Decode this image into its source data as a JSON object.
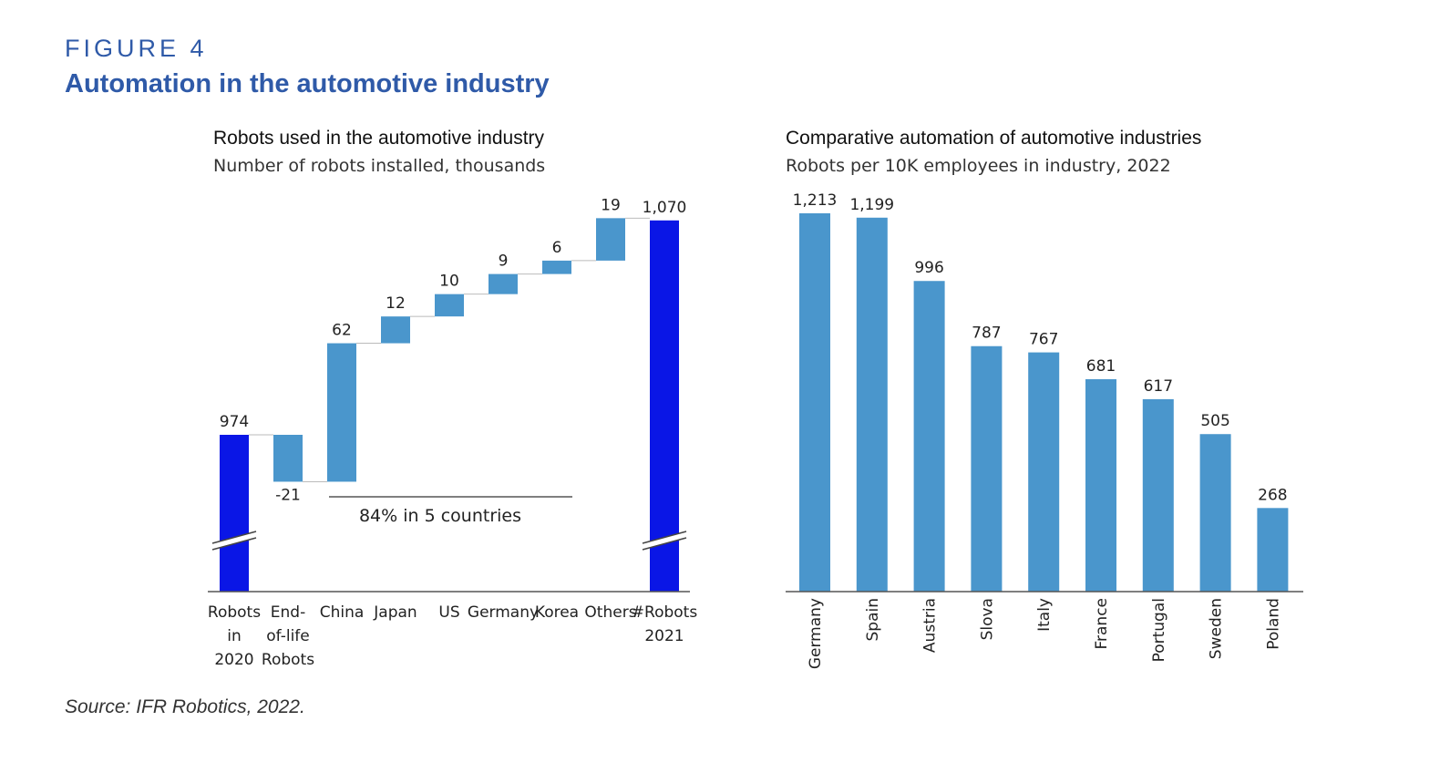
{
  "figure_label": "FIGURE 4",
  "figure_title": "Automation in the automotive industry",
  "source": "Source: IFR Robotics, 2022.",
  "colors": {
    "title_blue": "#2f5aa8",
    "total_bar": "#0a16e6",
    "bar": "#4a96cc"
  },
  "chart_data": [
    {
      "type": "bar",
      "subtype": "waterfall",
      "title": "Robots used in the automotive industry",
      "subtitle": "Number of robots installed, thousands",
      "categories": [
        [
          "Robots",
          "in",
          "2020"
        ],
        [
          "End-",
          "of-life",
          "Robots"
        ],
        [
          "China"
        ],
        [
          "Japan"
        ],
        [
          "US"
        ],
        [
          "Germany"
        ],
        [
          "Korea"
        ],
        [
          "Others"
        ],
        [
          "#Robots",
          "2021"
        ]
      ],
      "values": [
        974,
        -21,
        62,
        12,
        10,
        9,
        6,
        19,
        1070
      ],
      "value_labels": [
        "974",
        "-21",
        "62",
        "12",
        "10",
        "9",
        "6",
        "19",
        "1,070"
      ],
      "kinds": [
        "total",
        "delta",
        "delta",
        "delta",
        "delta",
        "delta",
        "delta",
        "delta",
        "total"
      ],
      "axis_break": true,
      "annotation": "84% in 5 countries"
    },
    {
      "type": "bar",
      "title": "Comparative automation of automotive industries",
      "subtitle": "Robots per 10K employees in industry, 2022",
      "categories": [
        "Germany",
        "Spain",
        "Austria",
        "Slova",
        "Italy",
        "France",
        "Portugal",
        "Sweden",
        "Poland"
      ],
      "values": [
        1213,
        1199,
        996,
        787,
        767,
        681,
        617,
        505,
        268
      ],
      "value_labels": [
        "1,213",
        "1,199",
        "996",
        "787",
        "767",
        "681",
        "617",
        "505",
        "268"
      ],
      "ylim": [
        0,
        1213
      ]
    }
  ]
}
